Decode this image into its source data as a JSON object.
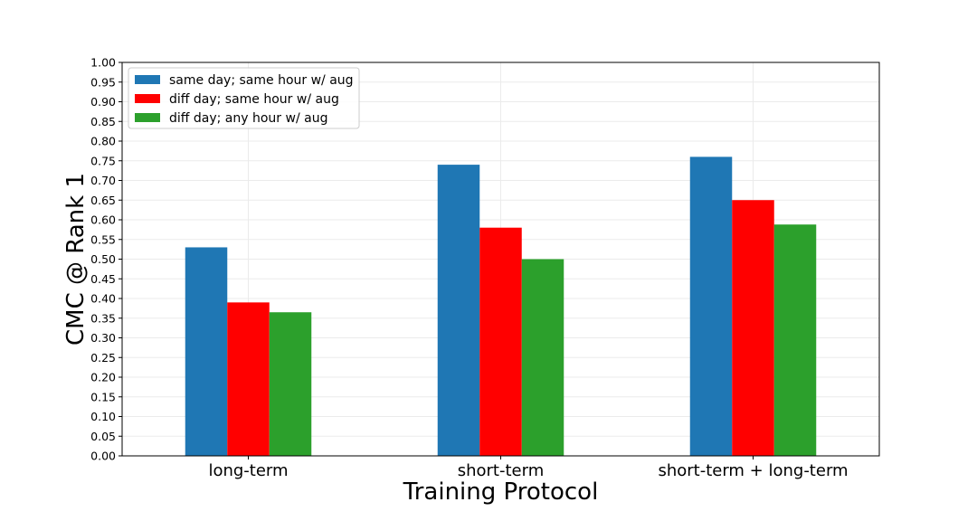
{
  "chart_data": {
    "type": "bar",
    "title": "",
    "xlabel": "Training Protocol",
    "ylabel": "CMC @ Rank 1",
    "ylim": [
      0,
      1.0
    ],
    "ytick_step": 0.05,
    "grid": true,
    "legend_position": "top-left",
    "categories": [
      "long-term",
      "short-term",
      "short-term + long-term"
    ],
    "series": [
      {
        "name": "same day; same hour w/ aug",
        "color": "#1f77b4",
        "values": [
          0.53,
          0.74,
          0.76
        ]
      },
      {
        "name": "diff day; same hour w/ aug",
        "color": "#ff0000",
        "values": [
          0.39,
          0.58,
          0.65
        ]
      },
      {
        "name": "diff day; any hour w/ aug",
        "color": "#2ca02c",
        "values": [
          0.365,
          0.5,
          0.588
        ]
      }
    ]
  }
}
